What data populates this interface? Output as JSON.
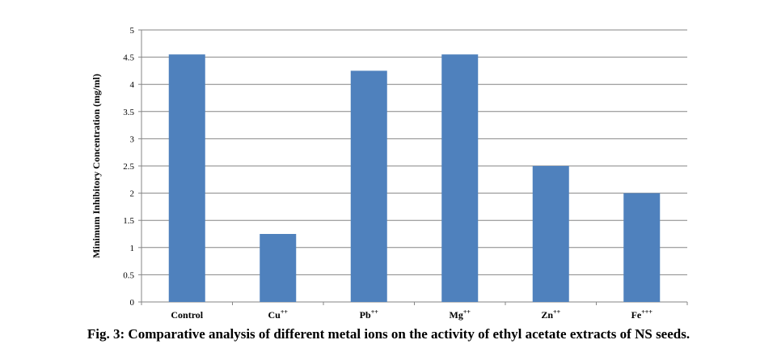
{
  "chart_data": {
    "type": "bar",
    "categories": [
      "Control",
      "Cu++",
      "Pb++",
      "Mg++",
      "Zn++",
      "Fe+++"
    ],
    "category_labels": [
      {
        "base": "Control",
        "sup": ""
      },
      {
        "base": "Cu",
        "sup": "++"
      },
      {
        "base": "Pb",
        "sup": "++"
      },
      {
        "base": "Mg",
        "sup": "++"
      },
      {
        "base": "Zn",
        "sup": "++"
      },
      {
        "base": "Fe",
        "sup": "+++"
      }
    ],
    "values": [
      4.55,
      1.25,
      4.25,
      4.55,
      2.5,
      2.0
    ],
    "ylabel": "Minimum Inhibitory Concentration (mg/ml)",
    "xlabel": "",
    "ylim": [
      0,
      5
    ],
    "yticks": [
      "0",
      "0.5",
      "1",
      "1.5",
      "2",
      "2.5",
      "3",
      "3.5",
      "4",
      "4.5",
      "5"
    ],
    "grid": true,
    "legend": "none",
    "bar_color": "#4f81bd",
    "grid_color": "#868686"
  },
  "caption": "Fig. 3: Comparative analysis of different metal ions on the activity of ethyl acetate extracts of NS seeds."
}
